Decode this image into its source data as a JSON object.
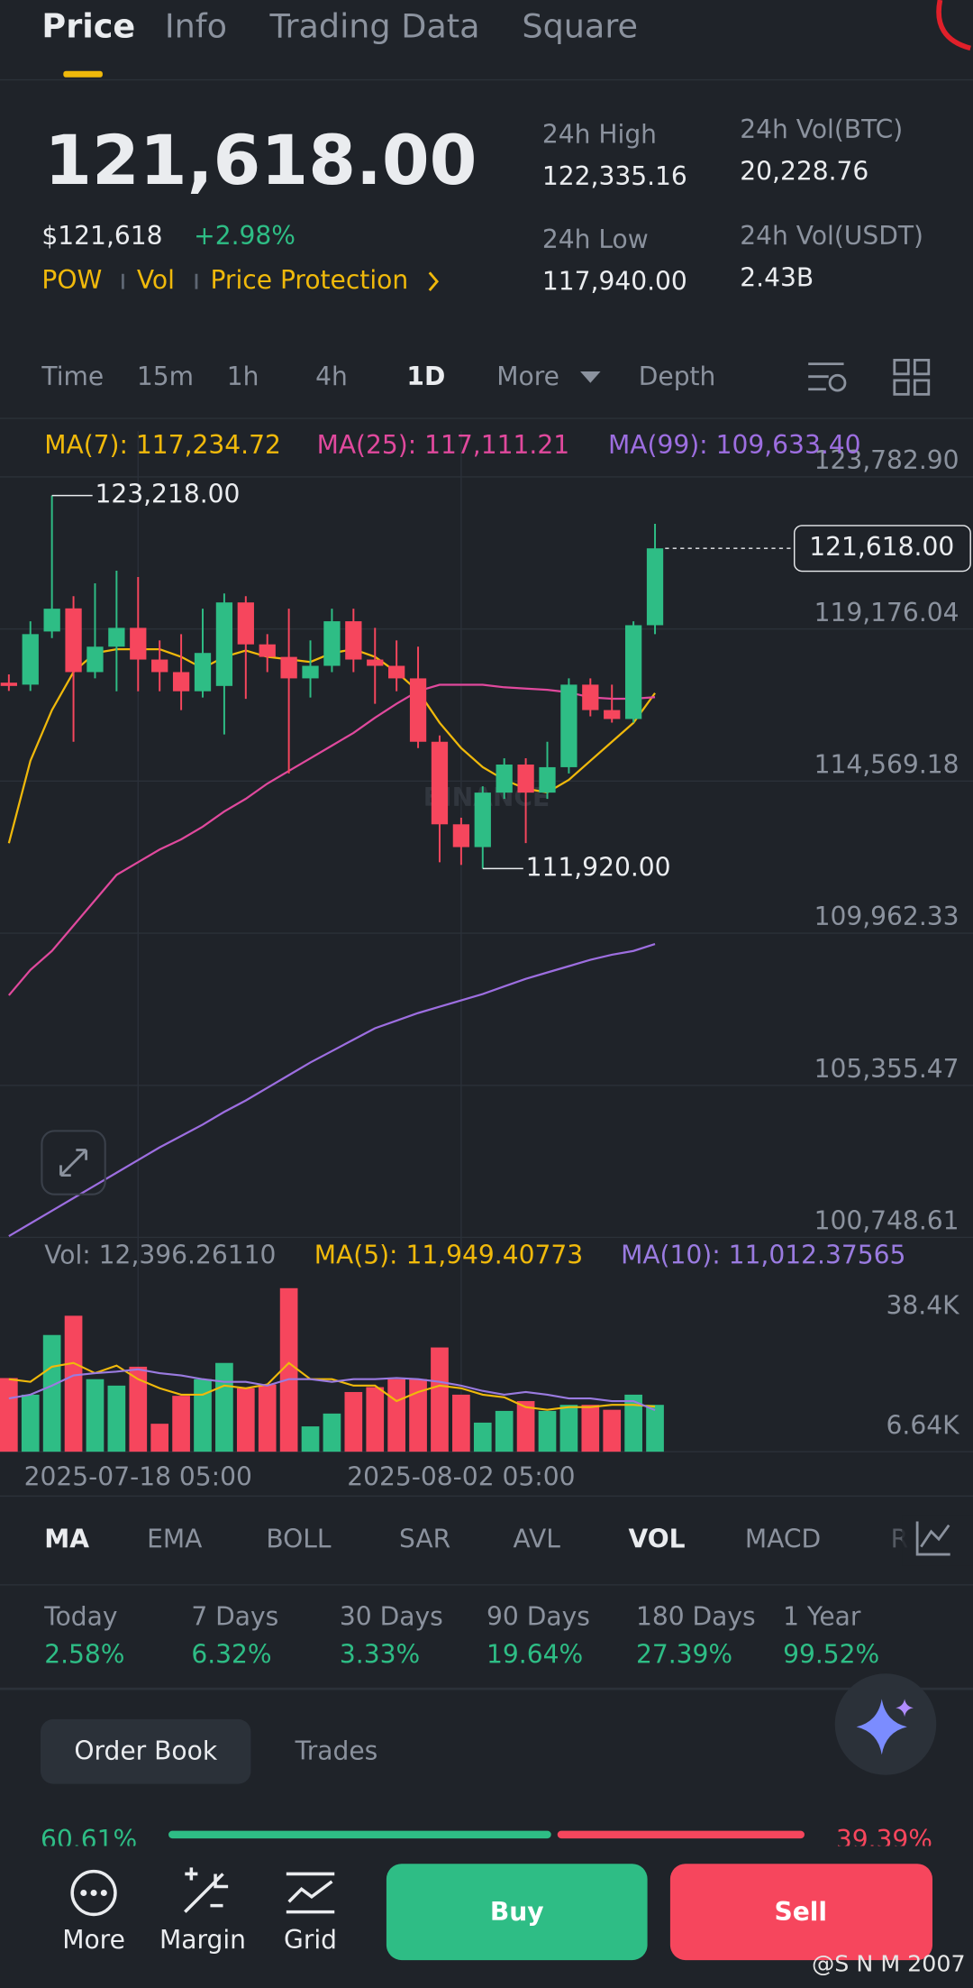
{
  "tabs": [
    "Price",
    "Info",
    "Trading Data",
    "Square"
  ],
  "price": {
    "last": "121,618.00",
    "usd": "$121,618",
    "change": "+2.98%",
    "tags": [
      "POW",
      "Vol",
      "Price Protection"
    ]
  },
  "stats": [
    {
      "label": "24h High",
      "value": "122,335.16"
    },
    {
      "label": "24h Vol(BTC)",
      "value": "20,228.76"
    },
    {
      "label": "24h Low",
      "value": "117,940.00"
    },
    {
      "label": "24h Vol(USDT)",
      "value": "2.43B"
    }
  ],
  "intervals": [
    "Time",
    "15m",
    "1h",
    "4h",
    "1D",
    "More",
    "Depth"
  ],
  "chart_data": [
    {
      "type": "candlestick",
      "watermark": "BINANCE",
      "x": [
        null,
        null,
        null,
        null,
        null,
        null,
        "2025-07-18 05:00",
        null,
        null,
        null,
        null,
        null,
        null,
        null,
        null,
        null,
        null,
        null,
        null,
        null,
        null,
        "2025-08-02 05:00",
        null,
        null,
        null,
        null,
        null,
        null,
        null,
        null,
        null
      ],
      "open": [
        117550,
        117490,
        119100,
        119800,
        117870,
        118640,
        119210,
        118250,
        117870,
        117290,
        117450,
        119980,
        118710,
        118330,
        117680,
        118060,
        119410,
        118250,
        118060,
        117680,
        115760,
        113260,
        112570,
        114220,
        115070,
        114220,
        114990,
        117490,
        116720,
        116450,
        119290
      ],
      "high": [
        117800,
        119410,
        123218,
        120170,
        120560,
        120940,
        120750,
        118830,
        119020,
        119790,
        120250,
        120170,
        119020,
        119790,
        118830,
        119790,
        119790,
        119210,
        118830,
        118640,
        115950,
        113460,
        114410,
        115260,
        115260,
        115760,
        117680,
        117680,
        117490,
        119410,
        122360
      ],
      "low": [
        117300,
        117300,
        118900,
        115760,
        117680,
        117290,
        117290,
        117290,
        116720,
        117100,
        115980,
        117060,
        117870,
        114800,
        117100,
        117870,
        117870,
        116910,
        117290,
        115570,
        112110,
        112030,
        111920,
        114030,
        112690,
        114030,
        114800,
        116530,
        116340,
        116340,
        119020
      ],
      "close": [
        117450,
        119020,
        119790,
        117870,
        118640,
        119210,
        118250,
        117870,
        117290,
        118450,
        119980,
        118710,
        118330,
        117680,
        118060,
        119410,
        118250,
        118060,
        117680,
        115760,
        113260,
        112570,
        114220,
        115070,
        114220,
        114990,
        117490,
        116720,
        116450,
        119290,
        121618
      ],
      "up_color": "#2ebd85",
      "down_color": "#f6465d",
      "high_label": "123,218.00",
      "low_label": "111,920.00",
      "last_label": "121,618.00",
      "series": [
        {
          "name": "MA(7): 117,234.72",
          "color": "#f0b90b",
          "values": [
            112688,
            115184,
            116719,
            117871,
            118447,
            118562,
            118562,
            118562,
            118332,
            117986,
            118332,
            118524,
            118332,
            118255,
            118178,
            118447,
            118562,
            118332,
            117871,
            117295,
            116335,
            115568,
            114992,
            114608,
            114339,
            114224,
            114608,
            115184,
            115759,
            116335,
            117234.72
          ]
        },
        {
          "name": "MA(25): 117,111.21",
          "color": "#e0499d",
          "values": [
            108081,
            108849,
            109425,
            110193,
            110961,
            111729,
            112112,
            112496,
            112803,
            113187,
            113648,
            114032,
            114493,
            114877,
            115260,
            115644,
            116028,
            116489,
            116911,
            117295,
            117487,
            117487,
            117487,
            117410,
            117372,
            117333,
            117257,
            117103,
            117064,
            117064,
            117111.21
          ]
        },
        {
          "name": "MA(99): 109,633.40",
          "color": "#9d6ee0",
          "values": [
            100787,
            101171,
            101555,
            101939,
            102323,
            102707,
            103091,
            103475,
            103820,
            104166,
            104550,
            104895,
            105279,
            105663,
            106047,
            106392,
            106738,
            107083,
            107314,
            107544,
            107736,
            107928,
            108120,
            108350,
            108581,
            108773,
            108964,
            109156,
            109310,
            109425,
            109633.4
          ]
        }
      ],
      "ylim": [
        100748,
        125170
      ],
      "yticks": [
        {
          "value": 123782.9,
          "label": "123,782.90"
        },
        {
          "value": 119176.04,
          "label": "119,176.04"
        },
        {
          "value": 114569.18,
          "label": "114,569.18"
        },
        {
          "value": 109962.33,
          "label": "109,962.33"
        },
        {
          "value": 105355.47,
          "label": "105,355.47"
        },
        {
          "value": 100748.61,
          "label": "100,748.61"
        }
      ],
      "grid": true
    },
    {
      "type": "bar",
      "label": "Vol: 12,396.26110",
      "values": [
        19.5,
        15.1,
        30.9,
        36,
        19.2,
        17.5,
        22.5,
        7.4,
        14.8,
        19.2,
        23.5,
        16.8,
        17.8,
        43.3,
        6.7,
        10.1,
        15.8,
        17.1,
        19.2,
        19.2,
        27.6,
        15.1,
        7.7,
        10.8,
        13.4,
        10.8,
        12.4,
        12.4,
        11.1,
        15.1,
        12.4
      ],
      "series": [
        {
          "name": "MA(5): 11,949.40773",
          "color": "#f0b90b",
          "values": [
            19.2,
            18.5,
            22.5,
            23.5,
            20.8,
            22.8,
            19.2,
            16.8,
            15.1,
            15.1,
            17.5,
            16.8,
            17.8,
            23.5,
            19.2,
            19.2,
            17.5,
            17.5,
            13.4,
            15.8,
            17.5,
            16.8,
            15.1,
            14.4,
            11.8,
            11.1,
            11.8,
            11.8,
            12.4,
            12.4,
            11.95
          ]
        },
        {
          "name": "MA(10): 11,012.37565",
          "color": "#9a7be0",
          "values": [
            14.1,
            15.1,
            17.5,
            20.2,
            20.8,
            21.2,
            21.8,
            20.8,
            20.2,
            19.2,
            18.5,
            18.5,
            17.5,
            19.2,
            19.2,
            18.5,
            19.2,
            19.2,
            19.5,
            19.2,
            18.5,
            17.5,
            16.1,
            15.1,
            15.8,
            15.1,
            14.1,
            14.1,
            13.4,
            13.4,
            11.01
          ]
        }
      ],
      "ylim": [
        0,
        47
      ],
      "yticks": [
        {
          "value": 38.4,
          "label": "38.4K"
        },
        {
          "value": 6.64,
          "label": "6.64K"
        }
      ]
    }
  ],
  "indicators": [
    "MA",
    "EMA",
    "BOLL",
    "SAR",
    "AVL",
    "VOL",
    "MACD",
    "R"
  ],
  "returns": [
    {
      "label": "Today",
      "value": "2.58%"
    },
    {
      "label": "7 Days",
      "value": "6.32%"
    },
    {
      "label": "30 Days",
      "value": "3.33%"
    },
    {
      "label": "90 Days",
      "value": "19.64%"
    },
    {
      "label": "180 Days",
      "value": "27.39%"
    },
    {
      "label": "1 Year",
      "value": "99.52%"
    }
  ],
  "book": {
    "tabs": [
      "Order Book",
      "Trades"
    ],
    "buy_ratio": "60.61%",
    "sell_ratio": "39.39%"
  },
  "nav": [
    "More",
    "Margin",
    "Grid"
  ],
  "actions": [
    "Buy",
    "Sell"
  ],
  "credit": "@S N M 2007"
}
